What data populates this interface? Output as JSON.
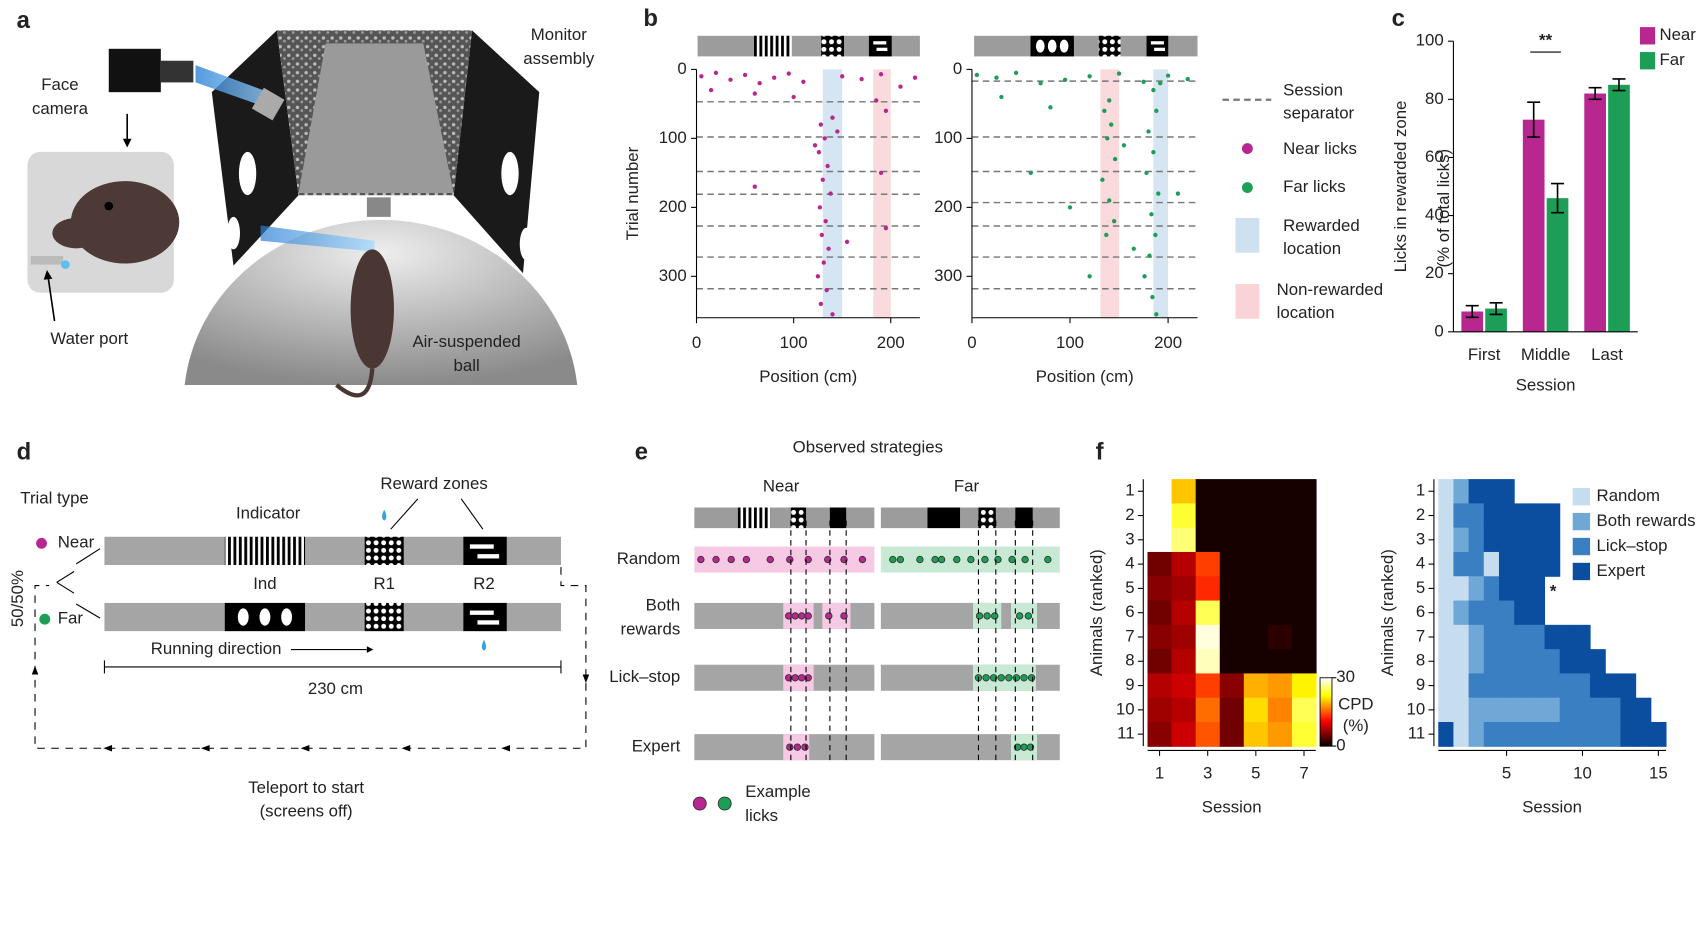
{
  "panel_labels": [
    "a",
    "b",
    "c",
    "d",
    "e",
    "f"
  ],
  "panel_a": {
    "face_camera": [
      "Face",
      "camera"
    ],
    "monitor_assembly": [
      "Monitor",
      "assembly"
    ],
    "water_port": "Water port",
    "ball": [
      "Air-suspended",
      "ball"
    ]
  },
  "panel_b_legend": [
    [
      "Session",
      "separator"
    ],
    [
      "Near licks"
    ],
    [
      "Far licks"
    ],
    [
      "Rewarded",
      "location"
    ],
    [
      "Non-rewarded",
      "location"
    ]
  ],
  "chart_data": [
    {
      "type": "scatter",
      "xlabel": "Position (cm)",
      "ylabel": "Trial number",
      "color": "#b8278f",
      "xlim": [
        0,
        230
      ],
      "ylim": [
        0,
        360
      ],
      "y_inverted": true,
      "xticks": [
        0,
        100,
        200
      ],
      "yticks": [
        0,
        100,
        200,
        300
      ],
      "rewarded_zone": [
        130,
        150
      ],
      "nonrewarded_zone": [
        182,
        200
      ],
      "rewarded_color": "#cfe0f0",
      "nonrewarded_color": "#f9d3d6",
      "session_separators": [
        47,
        98,
        148,
        181,
        227,
        272,
        318
      ],
      "x": [
        5,
        20,
        35,
        50,
        65,
        80,
        95,
        110,
        150,
        170,
        190,
        210,
        225,
        15,
        60,
        100,
        185,
        195,
        140,
        128,
        132,
        126,
        135,
        130,
        138,
        127,
        133,
        129,
        136,
        131,
        125,
        134,
        128,
        140,
        122,
        145,
        190,
        195,
        60,
        155
      ],
      "y": [
        10,
        5,
        15,
        8,
        20,
        12,
        6,
        18,
        10,
        14,
        7,
        25,
        12,
        30,
        35,
        40,
        45,
        60,
        70,
        80,
        100,
        120,
        140,
        160,
        180,
        200,
        220,
        240,
        260,
        280,
        300,
        320,
        340,
        355,
        110,
        90,
        150,
        230,
        170,
        250
      ]
    },
    {
      "type": "scatter",
      "xlabel": "Position (cm)",
      "color": "#1d9e57",
      "xlim": [
        0,
        230
      ],
      "ylim": [
        0,
        360
      ],
      "y_inverted": true,
      "xticks": [
        0,
        100,
        200
      ],
      "yticks": [
        0,
        100,
        200,
        300
      ],
      "rewarded_zone": [
        185,
        200
      ],
      "nonrewarded_zone": [
        131,
        150
      ],
      "rewarded_color": "#cfe0f0",
      "nonrewarded_color": "#f9d3d6",
      "session_separators": [
        17,
        98,
        148,
        193,
        227,
        272,
        318
      ],
      "x": [
        5,
        25,
        45,
        70,
        95,
        120,
        150,
        175,
        200,
        220,
        30,
        80,
        140,
        185,
        135,
        142,
        138,
        146,
        133,
        140,
        145,
        137,
        180,
        185,
        178,
        190,
        183,
        187,
        181,
        176,
        184,
        188,
        60,
        100,
        210,
        165,
        155,
        120,
        188,
        192
      ],
      "y": [
        8,
        12,
        5,
        20,
        15,
        10,
        6,
        18,
        9,
        14,
        40,
        55,
        45,
        30,
        60,
        80,
        100,
        130,
        160,
        190,
        220,
        240,
        90,
        120,
        150,
        180,
        210,
        240,
        270,
        300,
        330,
        355,
        150,
        200,
        180,
        260,
        110,
        300,
        60,
        20
      ]
    },
    {
      "type": "bar",
      "categories": [
        "First",
        "Middle",
        "Last"
      ],
      "xlabel": "Session",
      "ylabel": [
        "Licks in rewarded zone",
        "(% of total licks)"
      ],
      "series": [
        {
          "name": "Near",
          "color": "#b8278f",
          "values": [
            7,
            73,
            82
          ],
          "errors": [
            2,
            6,
            2
          ]
        },
        {
          "name": "Far",
          "color": "#1d9e57",
          "values": [
            8,
            46,
            85
          ],
          "errors": [
            2,
            5,
            2
          ]
        }
      ],
      "ylim": [
        0,
        100
      ],
      "yticks": [
        0,
        20,
        40,
        60,
        80,
        100
      ],
      "annotation": "**"
    },
    {
      "type": "heatmap",
      "x": [
        1,
        2,
        3,
        4,
        5,
        6,
        7
      ],
      "y": [
        1,
        2,
        3,
        4,
        5,
        6,
        7,
        8,
        9,
        10,
        11
      ],
      "values": [
        [
          null,
          20,
          1,
          1,
          1,
          1,
          1
        ],
        [
          null,
          24,
          1,
          1,
          1,
          1,
          1
        ],
        [
          null,
          26,
          1,
          1,
          1,
          1,
          1
        ],
        [
          5,
          8,
          14,
          1,
          1,
          1,
          1
        ],
        [
          6,
          7,
          13,
          1,
          1,
          1,
          1
        ],
        [
          5,
          8,
          25,
          1,
          1,
          1,
          1
        ],
        [
          6,
          7,
          29,
          1,
          1,
          2,
          1
        ],
        [
          5,
          8,
          28,
          1,
          1,
          1,
          1
        ],
        [
          8,
          9,
          14,
          6,
          19,
          18,
          22
        ],
        [
          7,
          8,
          16,
          5,
          21,
          17,
          25
        ],
        [
          6,
          9,
          15,
          5,
          20,
          18,
          24
        ]
      ],
      "xticks": [
        1,
        3,
        5,
        7
      ],
      "yticks": [
        1,
        2,
        3,
        4,
        5,
        6,
        7,
        8,
        9,
        10,
        11
      ],
      "xlabel": "Session",
      "ylabel": "Animals (ranked)",
      "zlim": [
        0,
        30
      ],
      "zticks": [
        0,
        30
      ],
      "colorbar_label": [
        "CPD",
        "(%)"
      ],
      "colormap": "hot"
    },
    {
      "type": "categorical_heatmap",
      "categories": [
        "Random",
        "Both rewards",
        "Lick–stop",
        "Expert"
      ],
      "colors": [
        "#c6dcef",
        "#6fa7d6",
        "#3a7fc2",
        "#0b4e9f"
      ],
      "y": [
        1,
        2,
        3,
        4,
        5,
        6,
        7,
        8,
        9,
        10,
        11
      ],
      "values": [
        [
          0,
          1,
          3,
          3,
          3
        ],
        [
          0,
          2,
          2,
          3,
          3,
          3,
          3,
          3
        ],
        [
          0,
          1,
          2,
          3,
          3,
          3,
          3,
          3
        ],
        [
          0,
          2,
          2,
          0,
          3,
          3,
          3,
          3
        ],
        [
          0,
          0,
          1,
          2,
          3,
          3,
          3
        ],
        [
          0,
          1,
          2,
          2,
          2,
          3,
          3
        ],
        [
          0,
          0,
          1,
          2,
          2,
          2,
          2,
          3,
          3,
          3
        ],
        [
          0,
          0,
          1,
          2,
          2,
          2,
          2,
          2,
          3,
          3,
          3
        ],
        [
          0,
          0,
          2,
          2,
          2,
          2,
          2,
          2,
          2,
          2,
          3,
          3,
          3
        ],
        [
          0,
          0,
          1,
          1,
          1,
          1,
          1,
          1,
          2,
          2,
          2,
          2,
          3,
          3
        ],
        [
          3,
          0,
          1,
          2,
          2,
          2,
          2,
          2,
          2,
          2,
          2,
          2,
          3,
          3,
          3
        ]
      ],
      "xlim": [
        0.5,
        15.5
      ],
      "xticks": [
        5,
        10,
        15
      ],
      "yticks": [
        1,
        2,
        3,
        4,
        5,
        6,
        7,
        8,
        9,
        10,
        11
      ],
      "xlabel": "Session",
      "ylabel": "Animals (ranked)",
      "annotation": "*"
    }
  ],
  "panel_d": {
    "trial_type": "Trial type",
    "ratio": "50/50%",
    "near": "Near",
    "far": "Far",
    "indicator": "Indicator",
    "reward_zones": "Reward zones",
    "ind": "Ind",
    "r1": "R1",
    "r2": "R2",
    "running_direction": "Running direction",
    "distance": "230 cm",
    "teleport": [
      "Teleport to start",
      "(screens off)"
    ]
  },
  "panel_e": {
    "title": "Observed strategies",
    "near": "Near",
    "far": "Far",
    "rows": [
      [
        "Random"
      ],
      [
        "Both",
        "rewards"
      ],
      [
        "Lick–stop"
      ],
      [
        "Expert"
      ]
    ],
    "legend": [
      "Example",
      "licks"
    ]
  }
}
